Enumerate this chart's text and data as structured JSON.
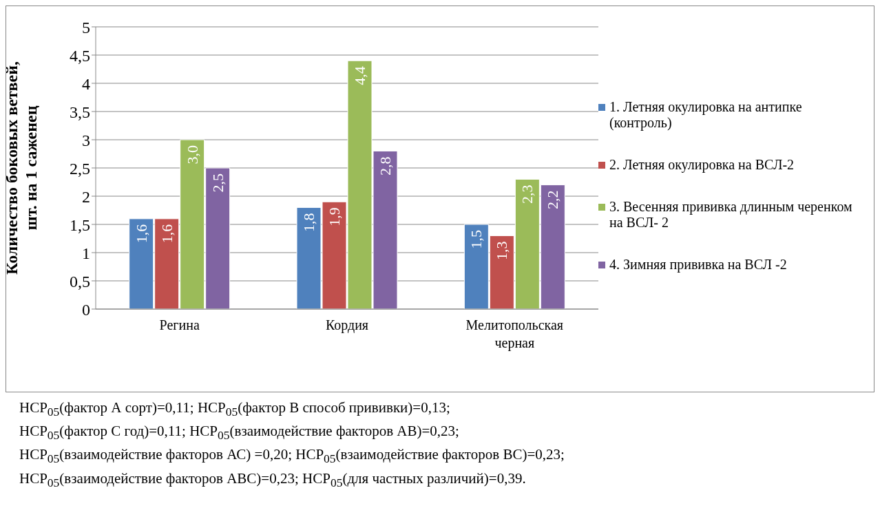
{
  "chart_data": {
    "type": "bar",
    "ylabel": "Количество боковых ветвей,\nшт. на 1 саженец",
    "categories": [
      "Регина",
      "Кордия",
      "Мелитопольская черная"
    ],
    "series": [
      {
        "name": "1. Летняя окулировка на антипке (контроль)",
        "color": "#4f81bd",
        "values": [
          1.6,
          1.8,
          1.5
        ],
        "value_labels": [
          "1,6",
          "1,8",
          "1,5"
        ]
      },
      {
        "name": "2. Летняя окулировка на ВСЛ-2",
        "color": "#c0504d",
        "values": [
          1.6,
          1.9,
          1.3
        ],
        "value_labels": [
          "1,6",
          "1,9",
          "1,3"
        ]
      },
      {
        "name": "3. Весенняя прививка длинным черенком на ВСЛ- 2",
        "color": "#9bbb59",
        "values": [
          3.0,
          4.4,
          2.3
        ],
        "value_labels": [
          "3,0",
          "4,4",
          "2,3"
        ]
      },
      {
        "name": "4. Зимняя прививка на ВСЛ -2",
        "color": "#8064a2",
        "values": [
          2.5,
          2.8,
          2.2
        ],
        "value_labels": [
          "2,5",
          "2,8",
          "2,2"
        ]
      }
    ],
    "ylim": [
      0,
      5
    ],
    "yticks": [
      0,
      {
        "value": 0.5,
        "label": "0,5"
      },
      1,
      {
        "value": 1.5,
        "label": "1,5"
      },
      2,
      {
        "value": 2.5,
        "label": "2,5"
      },
      3,
      {
        "value": 3.5,
        "label": "3,5"
      },
      4,
      {
        "value": 4.5,
        "label": "4,5"
      },
      5
    ],
    "grid": "y",
    "legend": "right",
    "annotations": [
      "НСР$_{05}$(фактор А сорт)=0,11;  НСР$_{05}$(фактор В способ прививки)=0,13;",
      "НСР$_{05}$(фактор С год)=0,11; НСР$_{05}$(взаимодействие факторов АВ)=0,23;",
      "НСР$_{05}$(взаимодействие факторов АС) =0,20; НСР$_{05}$(взаимодействие факторов ВС)=0,23;",
      "НСР$_{05}$(взаимодействие факторов АВС)=0,23; НСР$_{05}$(для частных различий)=0,39."
    ]
  }
}
